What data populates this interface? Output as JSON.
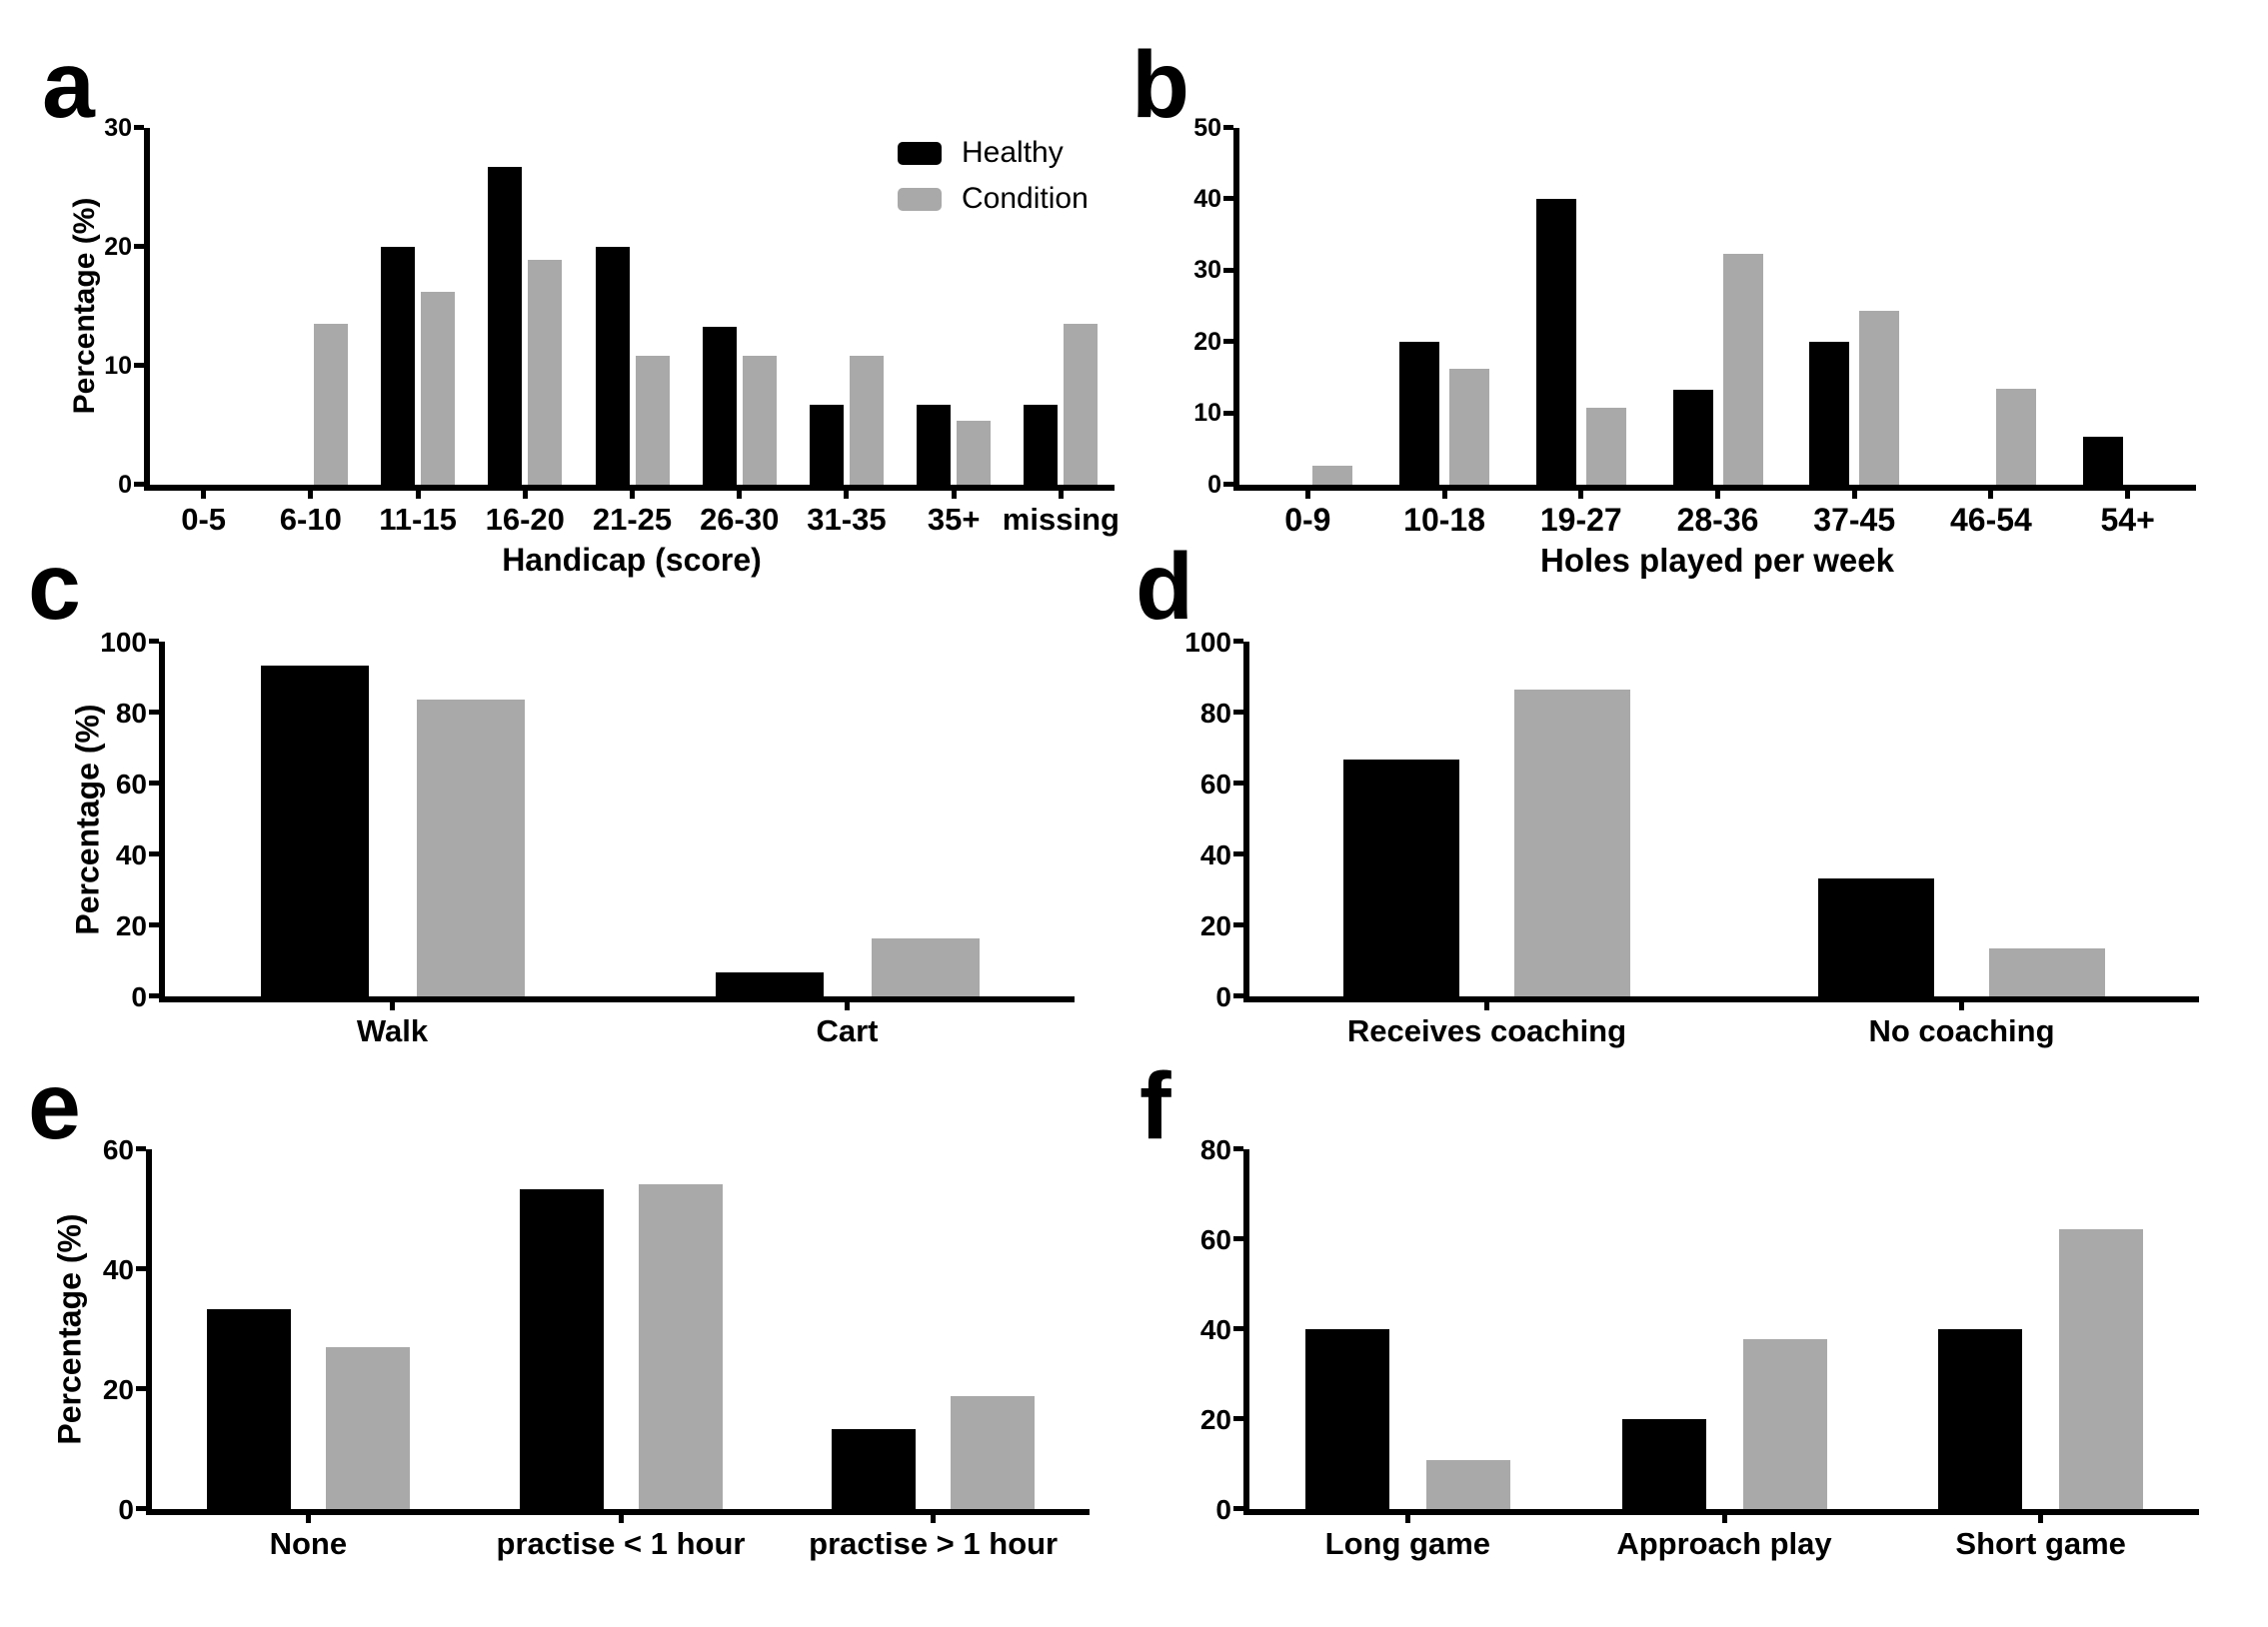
{
  "figure": {
    "background": "#ffffff",
    "text_color": "#000000",
    "series_colors": {
      "healthy": "#000000",
      "condition": "#A9A9A9"
    }
  },
  "chart_data": [
    {
      "type": "bar",
      "panel_label": "a",
      "xlabel": "Handicap (score)",
      "ylabel": "Percentage (%)",
      "ylim": [
        0,
        30
      ],
      "yticks": [
        0,
        10,
        20,
        30
      ],
      "grid": false,
      "categories": [
        "0-5",
        "6-10",
        "11-15",
        "16-20",
        "21-25",
        "26-30",
        "31-35",
        "35+",
        "missing"
      ],
      "series": [
        {
          "name": "Healthy",
          "color": "#000000",
          "values": [
            0,
            0,
            20,
            26.7,
            20,
            13.3,
            6.7,
            6.7,
            6.7
          ]
        },
        {
          "name": "Condition",
          "color": "#A9A9A9",
          "values": [
            0,
            13.5,
            16.2,
            18.9,
            10.8,
            10.8,
            10.8,
            5.4,
            13.5
          ]
        }
      ],
      "legend": {
        "visible": true,
        "position": "top-right-inside"
      }
    },
    {
      "type": "bar",
      "panel_label": "b",
      "xlabel": "Holes played per week",
      "ylabel": "",
      "ylim": [
        0,
        50
      ],
      "yticks": [
        0,
        10,
        20,
        30,
        40,
        50
      ],
      "grid": false,
      "categories": [
        "0-9",
        "10-18",
        "19-27",
        "28-36",
        "37-45",
        "46-54",
        "54+"
      ],
      "series": [
        {
          "name": "Healthy",
          "color": "#000000",
          "values": [
            0,
            20,
            40,
            13.3,
            20,
            0,
            6.7
          ]
        },
        {
          "name": "Condition",
          "color": "#A9A9A9",
          "values": [
            2.7,
            16.2,
            10.8,
            32.4,
            24.3,
            13.5,
            0
          ]
        }
      ],
      "legend": {
        "visible": false
      }
    },
    {
      "type": "bar",
      "panel_label": "c",
      "xlabel": "",
      "ylabel": "Percentage (%)",
      "ylim": [
        0,
        100
      ],
      "yticks": [
        0,
        20,
        40,
        60,
        80,
        100
      ],
      "grid": false,
      "categories": [
        "Walk",
        "Cart"
      ],
      "series": [
        {
          "name": "Healthy",
          "color": "#000000",
          "values": [
            93.3,
            6.7
          ]
        },
        {
          "name": "Condition",
          "color": "#A9A9A9",
          "values": [
            83.8,
            16.2
          ]
        }
      ],
      "legend": {
        "visible": false
      }
    },
    {
      "type": "bar",
      "panel_label": "d",
      "xlabel": "",
      "ylabel": "",
      "ylim": [
        0,
        100
      ],
      "yticks": [
        0,
        20,
        40,
        60,
        80,
        100
      ],
      "grid": false,
      "categories": [
        "Receives coaching",
        "No coaching"
      ],
      "series": [
        {
          "name": "Healthy",
          "color": "#000000",
          "values": [
            66.7,
            33.3
          ]
        },
        {
          "name": "Condition",
          "color": "#A9A9A9",
          "values": [
            86.5,
            13.5
          ]
        }
      ],
      "legend": {
        "visible": false
      }
    },
    {
      "type": "bar",
      "panel_label": "e",
      "xlabel": "",
      "ylabel": "Percentage (%)",
      "ylim": [
        0,
        60
      ],
      "yticks": [
        0,
        20,
        40,
        60
      ],
      "grid": false,
      "categories": [
        "None",
        "practise < 1 hour",
        "practise > 1 hour"
      ],
      "series": [
        {
          "name": "Healthy",
          "color": "#000000",
          "values": [
            33.3,
            53.3,
            13.3
          ]
        },
        {
          "name": "Condition",
          "color": "#A9A9A9",
          "values": [
            27.0,
            54.1,
            18.9
          ]
        }
      ],
      "legend": {
        "visible": false
      }
    },
    {
      "type": "bar",
      "panel_label": "f",
      "xlabel": "",
      "ylabel": "",
      "ylim": [
        0,
        80
      ],
      "yticks": [
        0,
        20,
        40,
        60,
        80
      ],
      "grid": false,
      "categories": [
        "Long game",
        "Approach play",
        "Short game"
      ],
      "series": [
        {
          "name": "Healthy",
          "color": "#000000",
          "values": [
            40,
            20,
            40
          ]
        },
        {
          "name": "Condition",
          "color": "#A9A9A9",
          "values": [
            10.8,
            37.8,
            62.2
          ]
        }
      ],
      "legend": {
        "visible": false
      }
    }
  ]
}
